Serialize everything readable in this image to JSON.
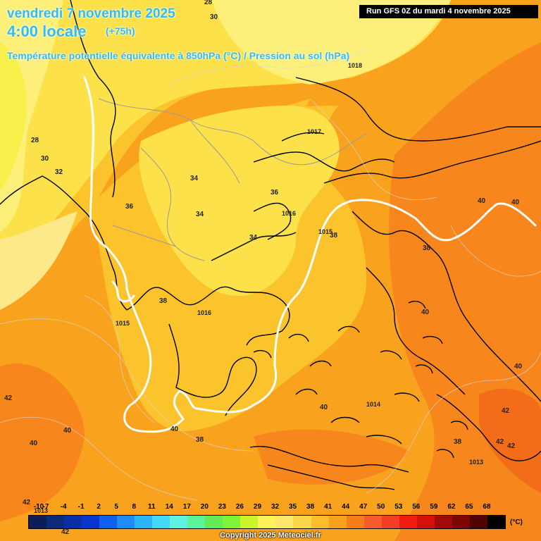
{
  "header": {
    "date_line": "vendredi 7 novembre 2025",
    "time_line": "4:00 locale",
    "lead": "(+75h)",
    "subtitle": "Température potentielle équivalente à 850hPa (°C) / Pression au sol (hPa)",
    "run": "Run GFS 0Z du mardi 4 novembre 2025"
  },
  "colors": {
    "yellow_light": "#fdf07a",
    "yellow": "#fde14a",
    "yellow_orange": "#fbc42c",
    "orange": "#f9a21e",
    "orange_dark": "#f77f1a",
    "coast": "#000000",
    "isobar": "#ffffff"
  },
  "theta_labels": [
    "28",
    "30",
    "28",
    "30",
    "32",
    "34",
    "36",
    "34",
    "34",
    "36",
    "38",
    "38",
    "38",
    "40",
    "40",
    "40",
    "40",
    "42",
    "42",
    "42",
    "42",
    "40",
    "38",
    "40",
    "42",
    "42"
  ],
  "pressure_labels": [
    "1018",
    "1017",
    "1016",
    "1015",
    "1016",
    "1014",
    "1013",
    "1015",
    "1013"
  ],
  "legend": {
    "unit": "(°C)",
    "ticks": [
      "-10",
      "-7",
      "-4",
      "-1",
      "2",
      "5",
      "8",
      "11",
      "14",
      "17",
      "20",
      "23",
      "26",
      "29",
      "32",
      "35",
      "38",
      "41",
      "44",
      "47",
      "50",
      "53",
      "56",
      "59",
      "62",
      "65",
      "68"
    ],
    "colors": [
      "#0b1e5a",
      "#0c2a7a",
      "#0a2ea8",
      "#0a34d0",
      "#1060f0",
      "#1d8cf5",
      "#2bb4f7",
      "#42d8f8",
      "#5ff2df",
      "#5ef39a",
      "#63ea55",
      "#7ff23a",
      "#c8f728",
      "#fdf25a",
      "#fde66a",
      "#fcd54a",
      "#fbbd2a",
      "#f9a01e",
      "#f77d1b",
      "#f55b2b",
      "#f53c24",
      "#f01c12",
      "#d3100c",
      "#a20a08",
      "#7c0505",
      "#4f0303",
      "#000000"
    ]
  },
  "footer": {
    "copyright": "Copyright 2025 Meteociel.fr"
  }
}
